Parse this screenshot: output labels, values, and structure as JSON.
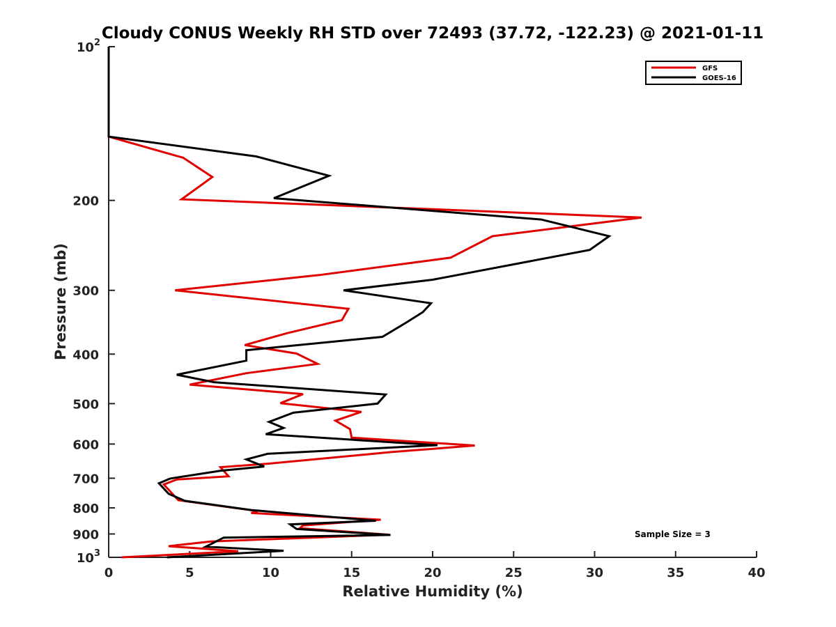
{
  "chart_data": {
    "type": "line",
    "title": "Cloudy CONUS Weekly RH STD over 72493 (37.72, -122.23) @ 2021-01-11",
    "xlabel": "Relative Humidity (%)",
    "ylabel": "Pressure (mb)",
    "xlim": [
      0,
      40
    ],
    "ylim": [
      100,
      1000
    ],
    "y_scale": "log",
    "y_reversed": true,
    "x_ticks": [
      "0",
      "5",
      "10",
      "15",
      "20",
      "25",
      "30",
      "35",
      "40"
    ],
    "y_ticks": [
      {
        "value": 100,
        "base": "10",
        "exp": "2"
      },
      {
        "value": 200,
        "label": "200"
      },
      {
        "value": 300,
        "label": "300"
      },
      {
        "value": 400,
        "label": "400"
      },
      {
        "value": 500,
        "label": "500"
      },
      {
        "value": 600,
        "label": "600"
      },
      {
        "value": 700,
        "label": "700"
      },
      {
        "value": 800,
        "label": "800"
      },
      {
        "value": 900,
        "label": "900"
      },
      {
        "value": 1000,
        "base": "10",
        "exp": "3"
      }
    ],
    "legend_position": "top-right",
    "annotation": "Sample Size = 3",
    "series": [
      {
        "name": "GFS",
        "color": "#e00000",
        "points": [
          [
            0,
            100
          ],
          [
            0,
            150
          ],
          [
            4.6,
            165
          ],
          [
            6.4,
            180
          ],
          [
            4.5,
            199
          ],
          [
            32.9,
            216
          ],
          [
            23.7,
            235
          ],
          [
            21.1,
            259
          ],
          [
            13.0,
            280
          ],
          [
            4.1,
            300
          ],
          [
            14.8,
            326
          ],
          [
            14.4,
            343
          ],
          [
            11.0,
            364
          ],
          [
            8.4,
            384
          ],
          [
            11.6,
            399
          ],
          [
            12.9,
            418
          ],
          [
            8.5,
            436
          ],
          [
            5.0,
            459
          ],
          [
            12.0,
            479
          ],
          [
            10.6,
            499
          ],
          [
            15.6,
            519
          ],
          [
            14.0,
            540
          ],
          [
            14.9,
            561
          ],
          [
            15.0,
            583
          ],
          [
            22.6,
            604
          ],
          [
            17.5,
            622
          ],
          [
            10.0,
            655
          ],
          [
            6.9,
            666
          ],
          [
            7.4,
            694
          ],
          [
            4.2,
            704
          ],
          [
            3.4,
            720
          ],
          [
            4.3,
            773
          ],
          [
            9.2,
            812
          ],
          [
            8.8,
            819
          ],
          [
            16.8,
            844
          ],
          [
            12.0,
            866
          ],
          [
            11.8,
            877
          ],
          [
            17.3,
            903
          ],
          [
            6.3,
            931
          ],
          [
            3.7,
            951
          ],
          [
            8.0,
            973
          ],
          [
            0.8,
            1000
          ]
        ]
      },
      {
        "name": "GOES-16",
        "color": "#000000",
        "points": [
          [
            0,
            100
          ],
          [
            0,
            150
          ],
          [
            9.1,
            164
          ],
          [
            13.6,
            179
          ],
          [
            10.2,
            198
          ],
          [
            26.7,
            218
          ],
          [
            30.9,
            235
          ],
          [
            29.7,
            250
          ],
          [
            20.0,
            286
          ],
          [
            14.5,
            300
          ],
          [
            19.9,
            318
          ],
          [
            19.4,
            331
          ],
          [
            18.3,
            348
          ],
          [
            16.9,
            370
          ],
          [
            8.5,
            393
          ],
          [
            8.5,
            412
          ],
          [
            4.2,
            439
          ],
          [
            6.5,
            454
          ],
          [
            17.1,
            480
          ],
          [
            16.6,
            500
          ],
          [
            11.4,
            521
          ],
          [
            9.9,
            543
          ],
          [
            10.8,
            558
          ],
          [
            9.7,
            574
          ],
          [
            20.3,
            603
          ],
          [
            9.8,
            627
          ],
          [
            8.5,
            643
          ],
          [
            9.6,
            664
          ],
          [
            6.9,
            677
          ],
          [
            3.8,
            701
          ],
          [
            3.1,
            716
          ],
          [
            3.7,
            751
          ],
          [
            4.7,
            775
          ],
          [
            8.8,
            808
          ],
          [
            16.5,
            848
          ],
          [
            11.2,
            862
          ],
          [
            11.6,
            880
          ],
          [
            17.4,
            904
          ],
          [
            7.1,
            915
          ],
          [
            6.0,
            953
          ],
          [
            10.8,
            971
          ],
          [
            3.6,
            1000
          ]
        ]
      }
    ]
  }
}
